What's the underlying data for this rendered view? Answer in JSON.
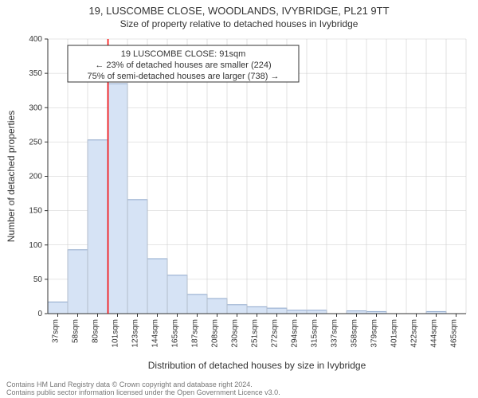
{
  "title_line1": "19, LUSCOMBE CLOSE, WOODLANDS, IVYBRIDGE, PL21 9TT",
  "title_line2": "Size of property relative to detached houses in Ivybridge",
  "title_fontsize": 13,
  "subtitle_fontsize": 12,
  "box": {
    "line1": "19 LUSCOMBE CLOSE: 91sqm",
    "line2": "← 23% of detached houses are smaller (224)",
    "line3": "75% of semi-detached houses are larger (738) →",
    "border_color": "#333333",
    "bg_color": "#ffffff",
    "fontsize": 11
  },
  "ylabel": "Number of detached properties",
  "xlabel": "Distribution of detached houses by size in Ivybridge",
  "label_fontsize": 12,
  "tick_fontsize": 10,
  "footer_line1": "Contains HM Land Registry data © Crown copyright and database right 2024.",
  "footer_line2": "Contains public sector information licensed under the Open Government Licence v3.0.",
  "footer_fontsize": 9,
  "footer_color": "#777777",
  "chart": {
    "type": "histogram",
    "bar_fill": "#d6e3f5",
    "bar_stroke": "#8fa8cc",
    "bar_stroke_width": 1,
    "grid_color": "#cccccc",
    "grid_width": 0.6,
    "axis_color": "#333333",
    "axis_width": 1,
    "background_color": "#ffffff",
    "marker_color": "#ff0000",
    "marker_width": 1.5,
    "ylim": [
      0,
      400
    ],
    "ytick_step": 50,
    "yticks": [
      0,
      50,
      100,
      150,
      200,
      250,
      300,
      350,
      400
    ],
    "xticks": [
      "37sqm",
      "58sqm",
      "80sqm",
      "101sqm",
      "123sqm",
      "144sqm",
      "165sqm",
      "187sqm",
      "208sqm",
      "230sqm",
      "251sqm",
      "272sqm",
      "294sqm",
      "315sqm",
      "337sqm",
      "358sqm",
      "379sqm",
      "401sqm",
      "422sqm",
      "444sqm",
      "465sqm"
    ],
    "categories": [
      "37",
      "58",
      "80",
      "101",
      "123",
      "144",
      "165",
      "187",
      "208",
      "230",
      "251",
      "272",
      "294",
      "315",
      "337",
      "358",
      "379",
      "401",
      "422",
      "444",
      "465"
    ],
    "values": [
      17,
      93,
      253,
      335,
      166,
      80,
      56,
      28,
      22,
      13,
      10,
      8,
      5,
      5,
      0,
      4,
      3,
      0,
      0,
      3,
      0
    ],
    "marker_value": 91,
    "aspect_width": 600,
    "aspect_height": 500
  }
}
